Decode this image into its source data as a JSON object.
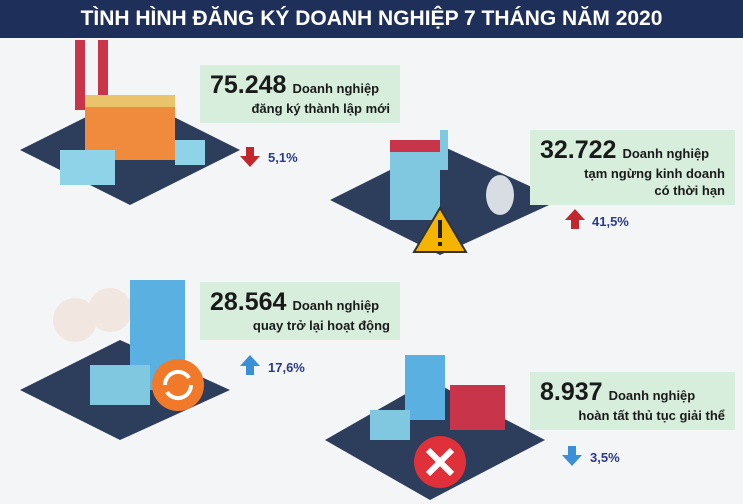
{
  "header": {
    "title": "TÌNH HÌNH ĐĂNG KÝ DOANH NGHIỆP 7 THÁNG NĂM 2020"
  },
  "items": [
    {
      "number": "75.248",
      "unit": "Doanh nghiệp",
      "description": [
        "đăng ký thành lập mới"
      ],
      "change": "5,1%",
      "trend": "down",
      "color": "#c0282d"
    },
    {
      "number": "32.722",
      "unit": "Doanh nghiệp",
      "description": [
        "tạm ngừng kinh doanh",
        "có thời hạn"
      ],
      "change": "41,5%",
      "trend": "up",
      "color": "#c0282d"
    },
    {
      "number": "28.564",
      "unit": "Doanh nghiệp",
      "description": [
        "quay trở lại hoạt động"
      ],
      "change": "17,6%",
      "trend": "up",
      "color": "#3a8fd6"
    },
    {
      "number": "8.937",
      "unit": "Doanh nghiệp",
      "description": [
        "hoàn tất thủ tục giải thể"
      ],
      "change": "3,5%",
      "trend": "down",
      "color": "#3a8fd6"
    }
  ]
}
